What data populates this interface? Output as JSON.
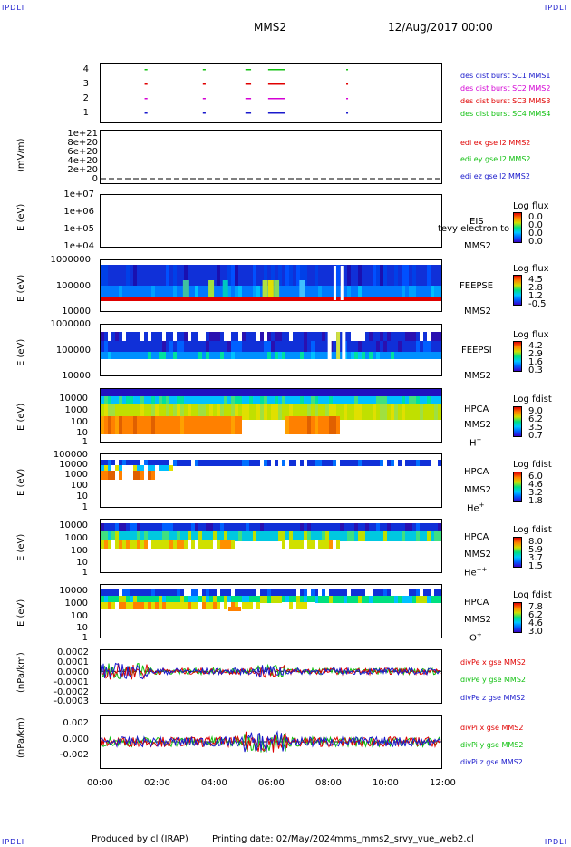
{
  "header": {
    "corner_tl": "IPDLI",
    "corner_tr": "IPDLI",
    "corner_bl": "IPDLI",
    "corner_br": "IPDLI",
    "spacecraft": "MMS2",
    "datetime": "12/Aug/2017 00:00"
  },
  "footer": {
    "produced_by": "Produced by cl (IRAP)",
    "printing_date": "Printing date: 02/May/2024",
    "script": "mms_mms2_srvy_vue_web2.cl"
  },
  "colors": {
    "mms1": "#1a1acc",
    "mms2": "#d400d4",
    "mms3": "#e00000",
    "mms4": "#10c010",
    "x": "#e00000",
    "y": "#10c010",
    "z": "#1a1acc"
  },
  "chart_data": [
    {
      "type": "scatter",
      "panel": "burst",
      "yticks": [
        "4",
        "3",
        "2",
        "1"
      ],
      "legend": [
        "des dist burst SC1 MMS1",
        "des dist burst SC2 MMS2",
        "des dist burst SC3 MMS3",
        "des dist burst SC4 MMS4"
      ],
      "intervals_hours": [
        [
          1.55,
          1.65
        ],
        [
          3.6,
          3.7
        ],
        [
          5.1,
          5.3
        ],
        [
          5.9,
          6.5
        ],
        [
          8.65,
          8.7
        ]
      ]
    },
    {
      "type": "line",
      "panel": "edi",
      "ylabel": "(mV/m)",
      "yticks": [
        "1e+21",
        "8e+20",
        "6e+20",
        "4e+20",
        "2e+20",
        "0"
      ],
      "legend": [
        "edi ex gse l2 MMS2",
        "edi ey gse l2 MMS2",
        "edi ez gse l2 MMS2"
      ]
    },
    {
      "type": "heatmap",
      "panel": "eis",
      "ylabel": "E (eV)",
      "yticks": [
        "1e+07",
        "1e+06",
        "1e+05",
        "1e+04"
      ],
      "instrument": [
        "EIS",
        "MMS2"
      ],
      "overlay_text": "tevy electron to",
      "cbar_title": "Log flux",
      "cbar_values": [
        "0.0",
        "0.0",
        "0.0",
        "0.0"
      ]
    },
    {
      "type": "heatmap",
      "panel": "feepse",
      "ylabel": "E (eV)",
      "yticks": [
        "1000000",
        "100000",
        "10000"
      ],
      "instrument": [
        "FEEPSE",
        "MMS2"
      ],
      "cbar_title": "Log flux",
      "cbar_values": [
        "4.5",
        "2.8",
        "1.2",
        "-0.5"
      ]
    },
    {
      "type": "heatmap",
      "panel": "feepsi",
      "ylabel": "E (eV)",
      "yticks": [
        "1000000",
        "100000",
        "10000"
      ],
      "instrument": [
        "FEEPSI",
        "MMS2"
      ],
      "cbar_title": "Log flux",
      "cbar_values": [
        "4.2",
        "2.9",
        "1.6",
        "0.3"
      ]
    },
    {
      "type": "heatmap",
      "panel": "hpca_h",
      "ylabel": "E (eV)",
      "yticks": [
        "10000",
        "1000",
        "100",
        "10",
        "1"
      ],
      "instrument": [
        "HPCA",
        "MMS2",
        "H",
        "+"
      ],
      "cbar_title": "Log fdist",
      "cbar_values": [
        "9.0",
        "6.2",
        "3.5",
        "0.7"
      ]
    },
    {
      "type": "heatmap",
      "panel": "hpca_he",
      "ylabel": "E (eV)",
      "yticks": [
        "100000",
        "10000",
        "1000",
        "100",
        "10",
        "1"
      ],
      "instrument": [
        "HPCA",
        "MMS2",
        "He",
        "+"
      ],
      "cbar_title": "Log fdist",
      "cbar_values": [
        "6.0",
        "4.6",
        "3.2",
        "1.8"
      ]
    },
    {
      "type": "heatmap",
      "panel": "hpca_hepp",
      "ylabel": "E (eV)",
      "yticks": [
        "10000",
        "1000",
        "100",
        "10",
        "1"
      ],
      "instrument": [
        "HPCA",
        "MMS2",
        "He",
        "++"
      ],
      "cbar_title": "Log fdist",
      "cbar_values": [
        "8.0",
        "5.9",
        "3.7",
        "1.5"
      ]
    },
    {
      "type": "heatmap",
      "panel": "hpca_o",
      "ylabel": "E (eV)",
      "yticks": [
        "10000",
        "1000",
        "100",
        "10",
        "1"
      ],
      "instrument": [
        "HPCA",
        "MMS2",
        "O",
        "+"
      ],
      "cbar_title": "Log fdist",
      "cbar_values": [
        "7.8",
        "6.2",
        "4.6",
        "3.0"
      ]
    },
    {
      "type": "line",
      "panel": "divpe",
      "ylabel": "(nPa/km)",
      "yticks": [
        "0.0002",
        "0.0001",
        "0.0000",
        "-0.0001",
        "-0.0002",
        "-0.0003"
      ],
      "ylim": [
        -0.0003,
        0.0002
      ],
      "legend": [
        "divPe x gse MMS2",
        "divPe y gse MMS2",
        "divPe z gse MMS2"
      ]
    },
    {
      "type": "line",
      "panel": "divpi",
      "ylabel": "(nPa/km)",
      "yticks": [
        "0.002",
        "0.000",
        "-0.002"
      ],
      "ylim": [
        -0.003,
        0.003
      ],
      "legend": [
        "divPi x gse MMS2",
        "divPi y gse MMS2",
        "divPi z gse MMS2"
      ]
    }
  ],
  "xaxis": {
    "ticks": [
      "00:00",
      "02:00",
      "04:00",
      "06:00",
      "08:00",
      "10:00",
      "12:00"
    ],
    "range_hours": [
      0,
      12
    ]
  }
}
